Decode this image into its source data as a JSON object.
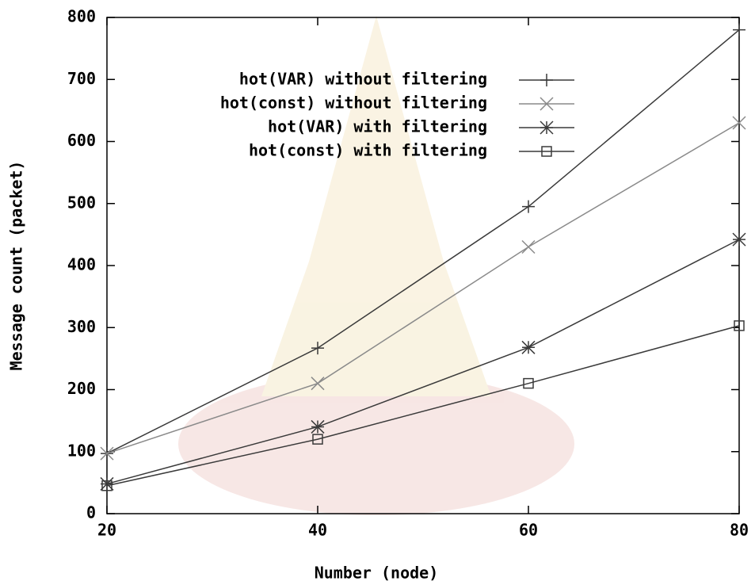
{
  "chart_data": {
    "type": "line",
    "x_label": "Number (node)",
    "y_label": "Message count (packet)",
    "x": [
      20,
      40,
      60,
      80
    ],
    "xlim": [
      20,
      80
    ],
    "xticks": [
      20,
      40,
      60,
      80
    ],
    "ylim": [
      0,
      800
    ],
    "yticks": [
      0,
      100,
      200,
      300,
      400,
      500,
      600,
      700,
      800
    ],
    "legend": "top-left",
    "series": [
      {
        "name": "hot(VAR) without filtering",
        "color": "#3a3a3a",
        "marker": "plus",
        "values": [
          97,
          267,
          495,
          780
        ]
      },
      {
        "name": "hot(const) without filtering",
        "color": "#8a8a8a",
        "marker": "cross",
        "values": [
          97,
          210,
          430,
          630
        ]
      },
      {
        "name": "hot(VAR) with filtering",
        "color": "#3a3a3a",
        "marker": "star",
        "values": [
          48,
          140,
          268,
          442
        ]
      },
      {
        "name": "hot(const) with filtering",
        "color": "#3a3a3a",
        "marker": "square",
        "values": [
          45,
          120,
          210,
          303
        ]
      }
    ]
  }
}
